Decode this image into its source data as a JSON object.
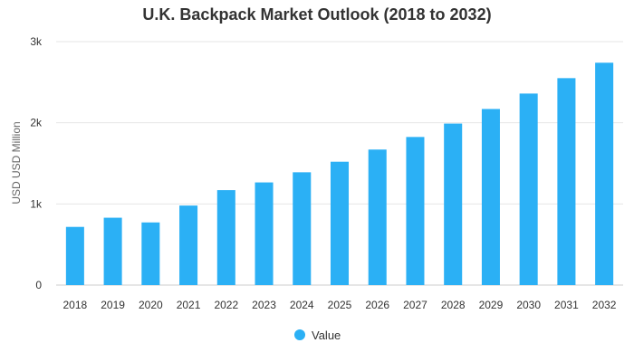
{
  "chart_data": {
    "type": "bar",
    "title": "U.K. Backpack Market Outlook (2018 to 2032)",
    "xlabel": "",
    "ylabel": "USD USD Million",
    "categories": [
      "2018",
      "2019",
      "2020",
      "2021",
      "2022",
      "2023",
      "2024",
      "2025",
      "2026",
      "2027",
      "2028",
      "2029",
      "2030",
      "2031",
      "2032"
    ],
    "series": [
      {
        "name": "Value",
        "color": "#2bb0f5",
        "values": [
          717,
          830,
          772,
          980,
          1170,
          1265,
          1390,
          1520,
          1670,
          1825,
          1990,
          2170,
          2360,
          2550,
          2740
        ]
      }
    ],
    "ylim": [
      0,
      3000
    ],
    "yticks": [
      {
        "value": 0,
        "label": "0"
      },
      {
        "value": 1000,
        "label": "1k"
      },
      {
        "value": 2000,
        "label": "2k"
      },
      {
        "value": 3000,
        "label": "3k"
      }
    ],
    "grid": true,
    "legend_position": "bottom"
  }
}
